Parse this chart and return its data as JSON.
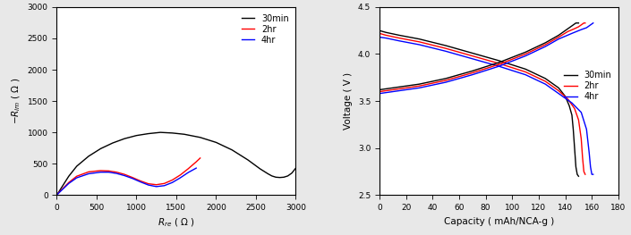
{
  "left": {
    "xlabel": "$R_{re}$ ( Ω )",
    "ylabel": "$-R_{im}$ ( Ω )",
    "xlim": [
      0,
      3000
    ],
    "ylim": [
      0,
      3000
    ],
    "xticks": [
      0,
      500,
      1000,
      1500,
      2000,
      2500,
      3000
    ],
    "yticks": [
      0,
      500,
      1000,
      1500,
      2000,
      2500,
      3000
    ],
    "legend_labels": [
      "30min",
      "2hr",
      "4hr"
    ],
    "legend_colors": [
      "black",
      "red",
      "blue"
    ],
    "curves": {
      "30min": {
        "color": "black",
        "x": [
          0,
          30,
          80,
          150,
          250,
          400,
          550,
          700,
          850,
          1000,
          1150,
          1300,
          1450,
          1600,
          1800,
          2000,
          2200,
          2400,
          2550,
          2650,
          2700,
          2750,
          2800,
          2850,
          2900,
          2950,
          3000
        ],
        "y": [
          0,
          60,
          160,
          300,
          460,
          620,
          740,
          830,
          900,
          950,
          980,
          1000,
          990,
          970,
          920,
          840,
          720,
          560,
          420,
          340,
          305,
          285,
          280,
          285,
          305,
          350,
          430
        ]
      },
      "2hr": {
        "color": "red",
        "x": [
          0,
          30,
          80,
          150,
          250,
          400,
          550,
          650,
          750,
          850,
          950,
          1050,
          1150,
          1250,
          1350,
          1450,
          1550,
          1650,
          1750,
          1800
        ],
        "y": [
          0,
          45,
          110,
          200,
          300,
          370,
          390,
          385,
          365,
          330,
          280,
          225,
          180,
          165,
          185,
          240,
          320,
          420,
          530,
          590
        ]
      },
      "4hr": {
        "color": "blue",
        "x": [
          0,
          30,
          80,
          150,
          250,
          400,
          550,
          650,
          750,
          850,
          950,
          1050,
          1150,
          1250,
          1350,
          1450,
          1550,
          1650,
          1750
        ],
        "y": [
          0,
          40,
          100,
          185,
          275,
          340,
          365,
          365,
          345,
          310,
          265,
          210,
          160,
          135,
          150,
          200,
          275,
          360,
          430
        ]
      }
    }
  },
  "right": {
    "xlabel": "Capacity ( mAh/NCA-g )",
    "ylabel": "Voltage ( V )",
    "xlim": [
      0,
      180
    ],
    "ylim": [
      2.5,
      4.5
    ],
    "xticks": [
      0,
      20,
      40,
      60,
      80,
      100,
      120,
      140,
      160,
      180
    ],
    "yticks": [
      2.5,
      3.0,
      3.5,
      4.0,
      4.5
    ],
    "legend_labels": [
      "30min",
      "2hr",
      "4hr"
    ],
    "legend_colors": [
      "black",
      "red",
      "blue"
    ],
    "discharge_curves": {
      "30min": {
        "color": "black",
        "x": [
          0,
          5,
          15,
          30,
          50,
          70,
          90,
          110,
          125,
          135,
          140,
          143,
          145,
          146,
          147,
          148,
          149,
          150
        ],
        "y": [
          4.25,
          4.23,
          4.2,
          4.16,
          4.09,
          4.01,
          3.93,
          3.84,
          3.74,
          3.64,
          3.55,
          3.45,
          3.35,
          3.2,
          3.0,
          2.8,
          2.72,
          2.7
        ]
      },
      "2hr": {
        "color": "red",
        "x": [
          0,
          5,
          15,
          30,
          50,
          70,
          90,
          110,
          125,
          135,
          142,
          147,
          150,
          152,
          153,
          154,
          155
        ],
        "y": [
          4.22,
          4.2,
          4.17,
          4.13,
          4.06,
          3.98,
          3.9,
          3.81,
          3.71,
          3.61,
          3.52,
          3.42,
          3.3,
          3.1,
          2.9,
          2.75,
          2.72
        ]
      },
      "4hr": {
        "color": "blue",
        "x": [
          0,
          5,
          15,
          30,
          50,
          70,
          90,
          110,
          125,
          135,
          145,
          152,
          156,
          158,
          159,
          160,
          161
        ],
        "y": [
          4.18,
          4.17,
          4.14,
          4.1,
          4.03,
          3.95,
          3.87,
          3.78,
          3.68,
          3.58,
          3.48,
          3.38,
          3.2,
          2.95,
          2.8,
          2.72,
          2.72
        ]
      }
    },
    "charge_curves": {
      "30min": {
        "color": "black",
        "x": [
          0,
          5,
          15,
          30,
          50,
          70,
          90,
          110,
          125,
          135,
          140,
          143,
          145,
          146,
          147,
          148,
          149,
          150
        ],
        "y": [
          3.62,
          3.63,
          3.65,
          3.68,
          3.74,
          3.82,
          3.91,
          4.02,
          4.12,
          4.2,
          4.25,
          4.28,
          4.3,
          4.31,
          4.32,
          4.33,
          4.33,
          4.33
        ]
      },
      "2hr": {
        "color": "red",
        "x": [
          0,
          5,
          15,
          30,
          50,
          70,
          90,
          110,
          125,
          135,
          142,
          147,
          150,
          152,
          153,
          154,
          155
        ],
        "y": [
          3.6,
          3.61,
          3.63,
          3.66,
          3.72,
          3.8,
          3.89,
          4.0,
          4.1,
          4.18,
          4.24,
          4.27,
          4.29,
          4.31,
          4.32,
          4.33,
          4.33
        ]
      },
      "4hr": {
        "color": "blue",
        "x": [
          0,
          5,
          15,
          30,
          50,
          70,
          90,
          110,
          125,
          135,
          145,
          152,
          156,
          158,
          159,
          160,
          161
        ],
        "y": [
          3.58,
          3.59,
          3.61,
          3.64,
          3.7,
          3.78,
          3.87,
          3.98,
          4.08,
          4.16,
          4.22,
          4.26,
          4.28,
          4.3,
          4.31,
          4.32,
          4.33
        ]
      }
    }
  },
  "bg_color": "#e8e8e8",
  "plot_bg_color": "white"
}
